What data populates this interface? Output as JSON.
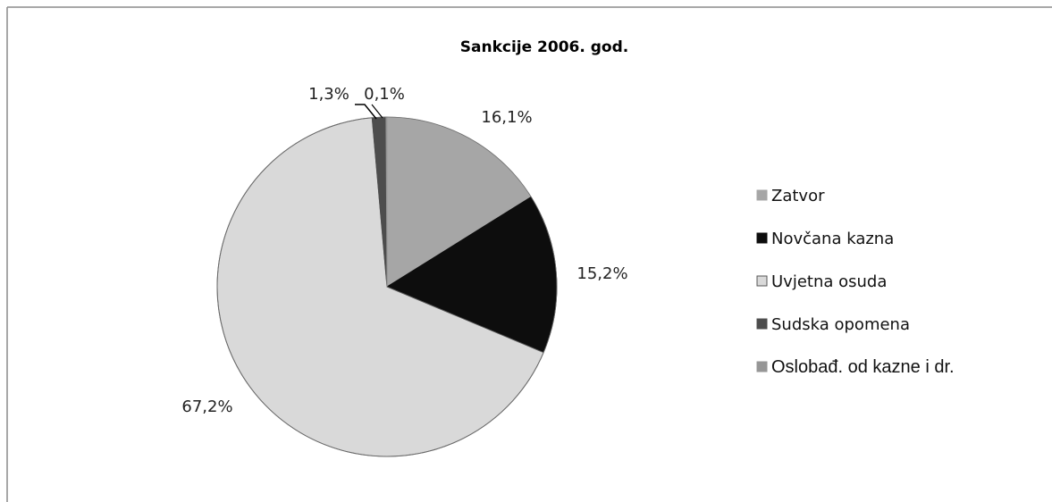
{
  "chart_data": {
    "type": "pie",
    "title": "Sankcije 2006. god.",
    "categories": [
      "Zatvor",
      "Novčana kazna",
      "Uvjetna osuda",
      "Sudska opomena",
      "Oslobađ. od kazne i dr."
    ],
    "values": [
      16.1,
      15.2,
      67.2,
      1.3,
      0.1
    ],
    "labels": [
      "16,1%",
      "15,2%",
      "67,2%",
      "1,3%",
      "0,1%"
    ],
    "colors": [
      "#a6a6a6",
      "#0d0d0d",
      "#d9d9d9",
      "#4d4d4d",
      "#969696"
    ],
    "start_angle_deg": 0,
    "direction": "clockwise",
    "legend_position": "right"
  }
}
